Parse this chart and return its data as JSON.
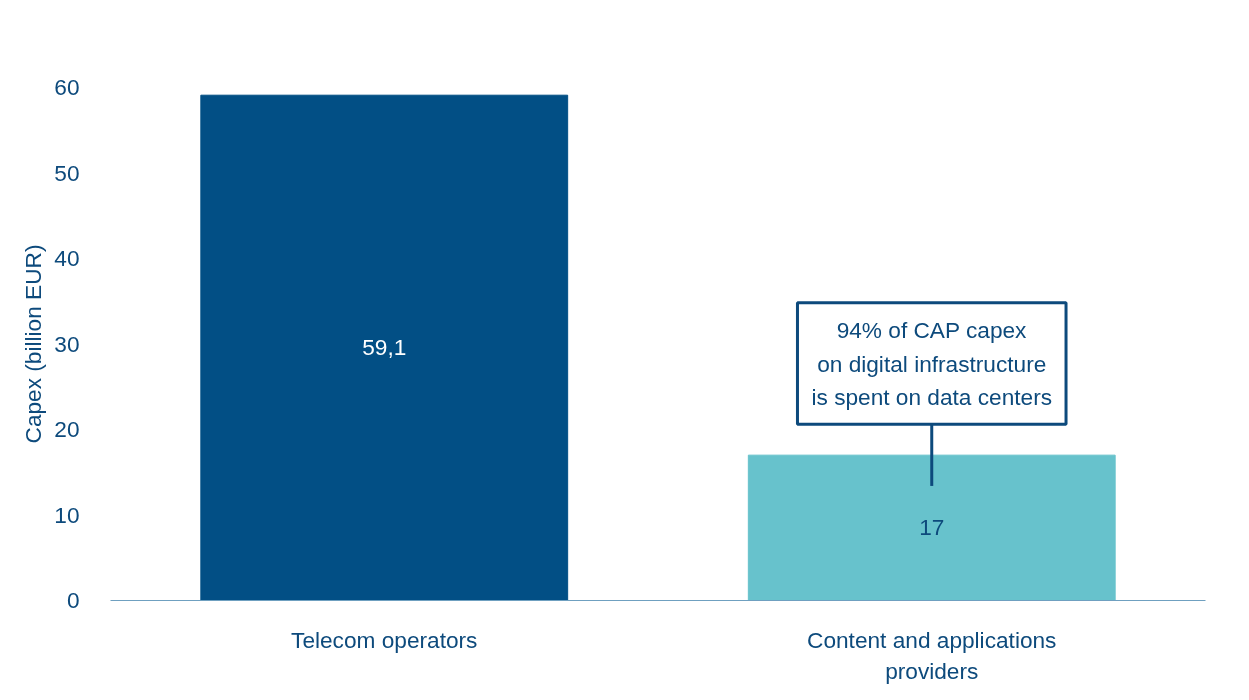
{
  "chart_data": {
    "type": "bar",
    "ylabel": "Capex (billion EUR)",
    "categories": [
      "Telecom operators",
      "Content and applications providers"
    ],
    "values": [
      59.1,
      17
    ],
    "colors": [
      "#024f85",
      "#67c2cc"
    ],
    "value_labels": [
      "59,1",
      "17"
    ],
    "ylim": [
      0,
      60
    ],
    "yticks": [
      0,
      10,
      20,
      30,
      40,
      50,
      60
    ],
    "grid": false,
    "annotations": [
      {
        "text": "94% of CAP capex\non digital infrastructure\nis spent on data centers",
        "x": "Content and applications providers",
        "y": 17
      }
    ]
  }
}
